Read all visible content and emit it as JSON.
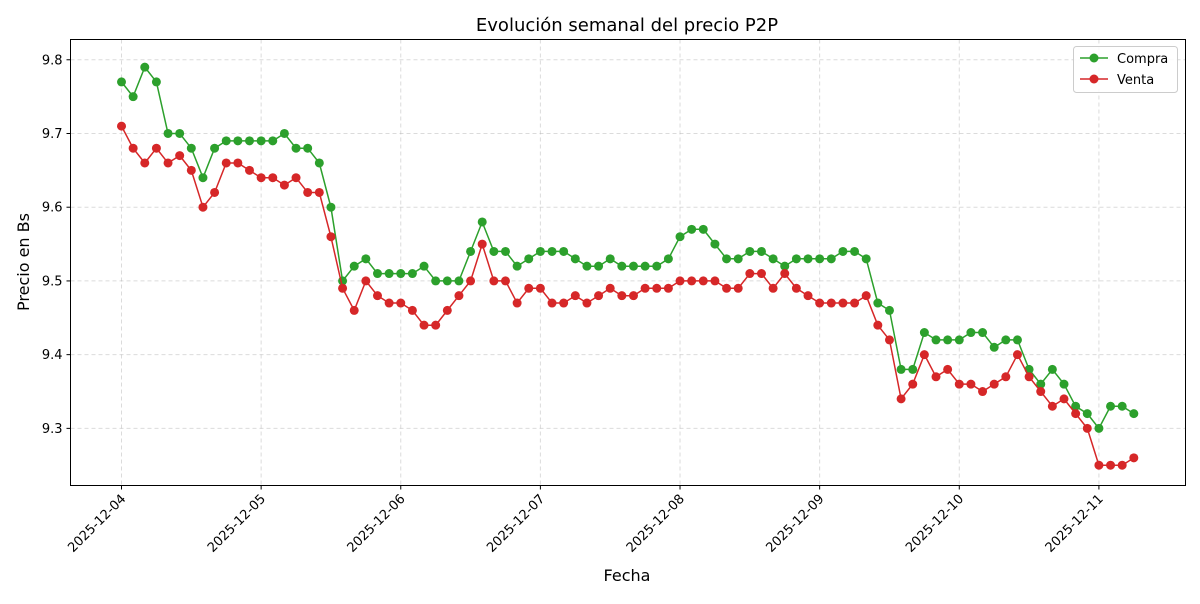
{
  "chart_data": {
    "type": "line",
    "title": "Evolución semanal del precio P2P",
    "xlabel": "Fecha",
    "ylabel": "Precio en Bs",
    "xlim": [
      "2025-12-03 15:14",
      "2025-12-11 14:53"
    ],
    "ylim": [
      9.2225,
      9.8275
    ],
    "grid": true,
    "legend": "top-right",
    "x_ticks": [
      "2025-12-04",
      "2025-12-05",
      "2025-12-06",
      "2025-12-07",
      "2025-12-08",
      "2025-12-09",
      "2025-12-10",
      "2025-12-11"
    ],
    "y_ticks": [
      "9.3",
      "9.4",
      "9.5",
      "9.6",
      "9.7",
      "9.8"
    ],
    "x": [
      "2025-12-04 00:00",
      "2025-12-04 02:00",
      "2025-12-04 04:00",
      "2025-12-04 06:00",
      "2025-12-04 08:00",
      "2025-12-04 10:00",
      "2025-12-04 12:00",
      "2025-12-04 14:00",
      "2025-12-04 16:00",
      "2025-12-04 18:00",
      "2025-12-04 20:00",
      "2025-12-04 22:00",
      "2025-12-05 00:00",
      "2025-12-05 02:00",
      "2025-12-05 04:00",
      "2025-12-05 06:00",
      "2025-12-05 08:00",
      "2025-12-05 10:00",
      "2025-12-05 12:00",
      "2025-12-05 14:00",
      "2025-12-05 16:00",
      "2025-12-05 18:00",
      "2025-12-05 20:00",
      "2025-12-05 22:00",
      "2025-12-06 00:00",
      "2025-12-06 02:00",
      "2025-12-06 04:00",
      "2025-12-06 06:00",
      "2025-12-06 08:00",
      "2025-12-06 10:00",
      "2025-12-06 12:00",
      "2025-12-06 14:00",
      "2025-12-06 16:00",
      "2025-12-06 18:00",
      "2025-12-06 20:00",
      "2025-12-06 22:00",
      "2025-12-07 00:00",
      "2025-12-07 02:00",
      "2025-12-07 04:00",
      "2025-12-07 06:00",
      "2025-12-07 08:00",
      "2025-12-07 10:00",
      "2025-12-07 12:00",
      "2025-12-07 14:00",
      "2025-12-07 16:00",
      "2025-12-07 18:00",
      "2025-12-07 20:00",
      "2025-12-07 22:00",
      "2025-12-08 00:00",
      "2025-12-08 02:00",
      "2025-12-08 04:00",
      "2025-12-08 06:00",
      "2025-12-08 08:00",
      "2025-12-08 10:00",
      "2025-12-08 12:00",
      "2025-12-08 14:00",
      "2025-12-08 16:00",
      "2025-12-08 18:00",
      "2025-12-08 20:00",
      "2025-12-08 22:00",
      "2025-12-09 00:00",
      "2025-12-09 02:00",
      "2025-12-09 04:00",
      "2025-12-09 06:00",
      "2025-12-09 08:00",
      "2025-12-09 10:00",
      "2025-12-09 12:00",
      "2025-12-09 14:00",
      "2025-12-09 16:00",
      "2025-12-09 18:00",
      "2025-12-09 20:00",
      "2025-12-09 22:00",
      "2025-12-10 00:00",
      "2025-12-10 02:00",
      "2025-12-10 04:00",
      "2025-12-10 06:00",
      "2025-12-10 08:00",
      "2025-12-10 10:00",
      "2025-12-10 12:00",
      "2025-12-10 14:00",
      "2025-12-10 16:00",
      "2025-12-10 18:00",
      "2025-12-10 20:00",
      "2025-12-10 22:00",
      "2025-12-11 00:00",
      "2025-12-11 02:00",
      "2025-12-11 04:00",
      "2025-12-11 06:00"
    ],
    "series": [
      {
        "name": "Compra",
        "color": "#2ca02c",
        "values": [
          9.77,
          9.75,
          9.79,
          9.77,
          9.7,
          9.7,
          9.68,
          9.64,
          9.68,
          9.69,
          9.69,
          9.69,
          9.69,
          9.69,
          9.7,
          9.68,
          9.68,
          9.66,
          9.6,
          9.5,
          9.52,
          9.53,
          9.51,
          9.51,
          9.51,
          9.51,
          9.52,
          9.5,
          9.5,
          9.5,
          9.54,
          9.58,
          9.54,
          9.54,
          9.52,
          9.53,
          9.54,
          9.54,
          9.54,
          9.53,
          9.52,
          9.52,
          9.53,
          9.52,
          9.52,
          9.52,
          9.52,
          9.53,
          9.56,
          9.57,
          9.57,
          9.55,
          9.53,
          9.53,
          9.54,
          9.54,
          9.53,
          9.52,
          9.53,
          9.53,
          9.53,
          9.53,
          9.54,
          9.54,
          9.53,
          9.47,
          9.46,
          9.38,
          9.38,
          9.43,
          9.42,
          9.42,
          9.42,
          9.43,
          9.43,
          9.41,
          9.42,
          9.42,
          9.38,
          9.36,
          9.38,
          9.36,
          9.33,
          9.32,
          9.3,
          9.33,
          9.33,
          9.32
        ]
      },
      {
        "name": "Venta",
        "color": "#d62728",
        "values": [
          9.71,
          9.68,
          9.66,
          9.68,
          9.66,
          9.67,
          9.65,
          9.6,
          9.62,
          9.66,
          9.66,
          9.65,
          9.64,
          9.64,
          9.63,
          9.64,
          9.62,
          9.62,
          9.56,
          9.49,
          9.46,
          9.5,
          9.48,
          9.47,
          9.47,
          9.46,
          9.44,
          9.44,
          9.46,
          9.48,
          9.5,
          9.55,
          9.5,
          9.5,
          9.47,
          9.49,
          9.49,
          9.47,
          9.47,
          9.48,
          9.47,
          9.48,
          9.49,
          9.48,
          9.48,
          9.49,
          9.49,
          9.49,
          9.5,
          9.5,
          9.5,
          9.5,
          9.49,
          9.49,
          9.51,
          9.51,
          9.49,
          9.51,
          9.49,
          9.48,
          9.47,
          9.47,
          9.47,
          9.47,
          9.48,
          9.44,
          9.42,
          9.34,
          9.36,
          9.4,
          9.37,
          9.38,
          9.36,
          9.36,
          9.35,
          9.36,
          9.37,
          9.4,
          9.37,
          9.35,
          9.33,
          9.34,
          9.32,
          9.3,
          9.25,
          9.25,
          9.25,
          9.26
        ]
      }
    ]
  }
}
